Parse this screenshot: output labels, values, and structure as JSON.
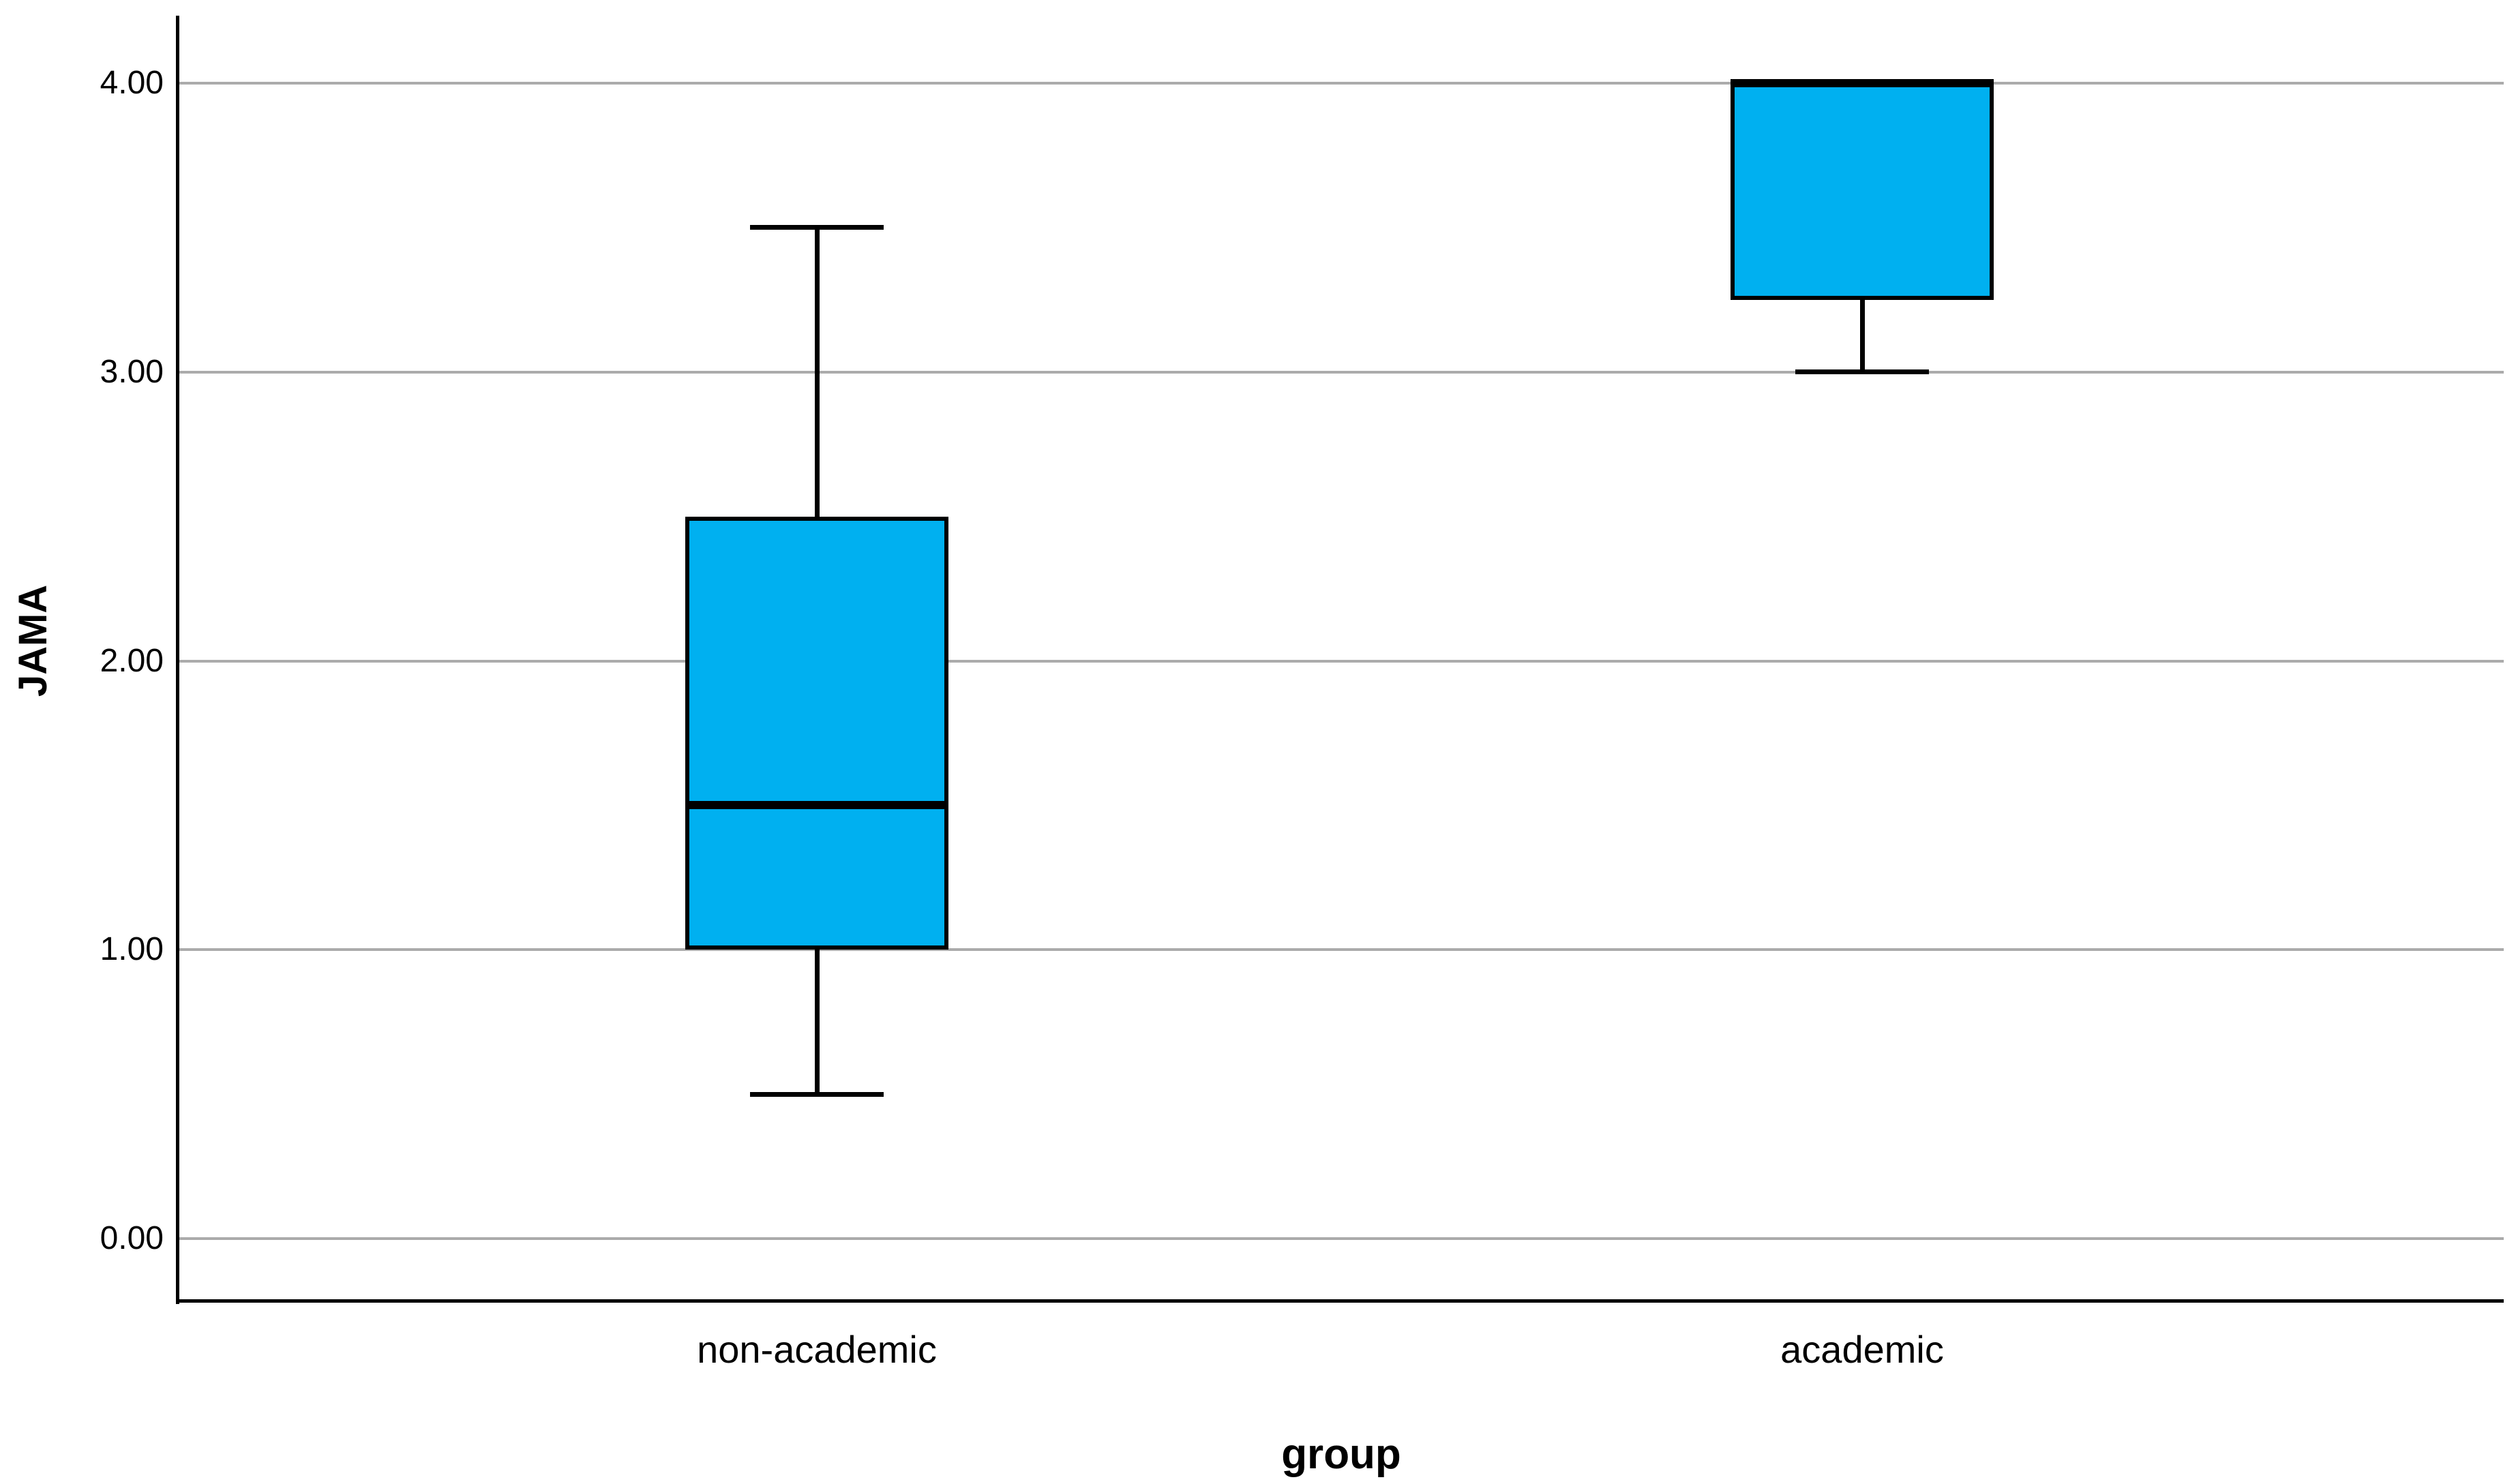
{
  "chart_data": {
    "type": "boxplot",
    "title": "",
    "xlabel": "group",
    "ylabel": "JAMA",
    "categories": [
      "non-academic",
      "academic"
    ],
    "yticks": [
      {
        "label": "0.00",
        "value": 0
      },
      {
        "label": "1.00",
        "value": 1
      },
      {
        "label": "2.00",
        "value": 2
      },
      {
        "label": "3.00",
        "value": 3
      },
      {
        "label": "4.00",
        "value": 4
      }
    ],
    "ylim": [
      -0.22,
      4.23
    ],
    "series": [
      {
        "category": "non-academic",
        "whisker_low": 0.5,
        "q1": 1.0,
        "median": 1.5,
        "q3": 2.5,
        "whisker_high": 3.5
      },
      {
        "category": "academic",
        "whisker_low": 3.0,
        "q1": 3.25,
        "median": 4.0,
        "q3": 4.0,
        "whisker_high": 4.0
      }
    ],
    "colors": {
      "box_fill": "#00B0F0",
      "box_border": "#000000",
      "gridline": "#ABABAB",
      "axis": "#000000"
    },
    "grid": "horizontal",
    "legend": "none"
  }
}
